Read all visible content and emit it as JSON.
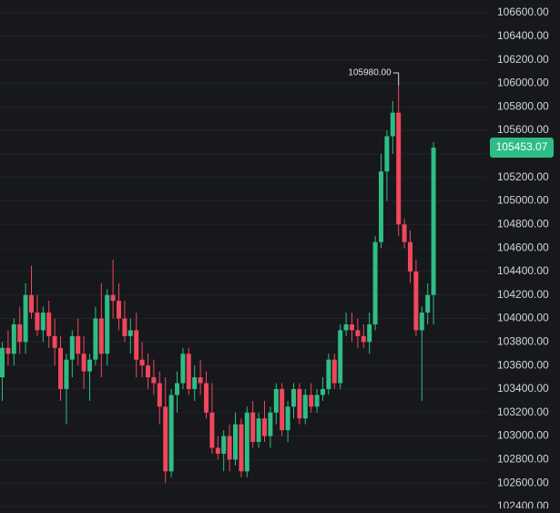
{
  "chart_data": {
    "type": "candlestick",
    "ylim": [
      102400,
      106600
    ],
    "yticks": [
      {
        "value": 106600,
        "label": "106600.00"
      },
      {
        "value": 106400,
        "label": "106400.00"
      },
      {
        "value": 106200,
        "label": "106200.00"
      },
      {
        "value": 106000,
        "label": "106000.00"
      },
      {
        "value": 105800,
        "label": "105800.00"
      },
      {
        "value": 105600,
        "label": "105600.00"
      },
      {
        "value": 105400,
        "label": "105400.00"
      },
      {
        "value": 105200,
        "label": "105200.00"
      },
      {
        "value": 105000,
        "label": "105000.00"
      },
      {
        "value": 104800,
        "label": "104800.00"
      },
      {
        "value": 104600,
        "label": "104600.00"
      },
      {
        "value": 104400,
        "label": "104400.00"
      },
      {
        "value": 104200,
        "label": "104200.00"
      },
      {
        "value": 104000,
        "label": "104000.00"
      },
      {
        "value": 103800,
        "label": "103800.00"
      },
      {
        "value": 103600,
        "label": "103600.00"
      },
      {
        "value": 103400,
        "label": "103400.00"
      },
      {
        "value": 103200,
        "label": "103200.00"
      },
      {
        "value": 103000,
        "label": "103000.00"
      },
      {
        "value": 102800,
        "label": "102800.00"
      },
      {
        "value": 102600,
        "label": "102600.00"
      },
      {
        "value": 102400,
        "label": "102400.00"
      }
    ],
    "grid": true,
    "up_color": "#2ebd85",
    "down_color": "#f0475c",
    "open": [
      103500,
      103750,
      103700,
      103950,
      103800,
      104200,
      104050,
      103900,
      104050,
      103850,
      103750,
      103400,
      103650,
      103850,
      103700,
      103550,
      103650,
      104000,
      103700,
      104200,
      104150,
      104000,
      103850,
      103900,
      103650,
      103600,
      103500,
      103450,
      103250,
      102700,
      103350,
      103450,
      103700,
      103400,
      103500,
      103450,
      103200,
      102900,
      102850,
      103000,
      102800,
      103100,
      102700,
      103200,
      102950,
      103150,
      103000,
      103200,
      103400,
      103050,
      103250,
      103400,
      103150,
      103350,
      103250,
      103350,
      103400,
      103650,
      103450,
      103900,
      103950,
      103900,
      103850,
      103800,
      103950,
      104650,
      105250,
      105550,
      105750,
      104800,
      104650,
      104400,
      103900,
      104050,
      104200
    ],
    "high": [
      103800,
      103900,
      104000,
      104100,
      104300,
      104450,
      104200,
      104100,
      104150,
      104000,
      103850,
      103700,
      103900,
      104000,
      103850,
      103700,
      104100,
      104300,
      104250,
      104500,
      104300,
      104150,
      104000,
      104050,
      103800,
      103700,
      103650,
      103550,
      103500,
      103400,
      103550,
      103750,
      103750,
      103600,
      103650,
      103550,
      103450,
      103000,
      103050,
      103100,
      103200,
      103150,
      103250,
      103300,
      103200,
      103300,
      103250,
      103450,
      103450,
      103300,
      103450,
      103450,
      103400,
      103450,
      103400,
      103500,
      103700,
      103700,
      103950,
      104050,
      104050,
      104000,
      103950,
      104050,
      104700,
      105400,
      105600,
      105850,
      105980,
      104850,
      104750,
      104500,
      104100,
      104300,
      105500
    ],
    "low": [
      103300,
      103600,
      103600,
      103700,
      103700,
      104000,
      103850,
      103800,
      103750,
      103600,
      103300,
      103100,
      103500,
      103600,
      103400,
      103300,
      103600,
      103500,
      103600,
      104000,
      103900,
      103800,
      103700,
      103500,
      103500,
      103400,
      103350,
      103100,
      102600,
      102650,
      103200,
      103400,
      103350,
      103300,
      103350,
      103150,
      102850,
      102800,
      102700,
      102700,
      102750,
      102650,
      102650,
      102900,
      102900,
      102950,
      102900,
      103100,
      103000,
      102950,
      103150,
      103100,
      103100,
      103200,
      103200,
      103300,
      103350,
      103400,
      103400,
      103850,
      103800,
      103750,
      103750,
      103700,
      103900,
      104600,
      105000,
      105400,
      104700,
      104600,
      104300,
      103850,
      103300,
      103950,
      103950
    ],
    "close": [
      103750,
      103700,
      103950,
      103800,
      104200,
      104050,
      103900,
      104050,
      103850,
      103750,
      103400,
      103650,
      103850,
      103700,
      103550,
      103650,
      104000,
      103700,
      104200,
      104150,
      104000,
      103850,
      103900,
      103650,
      103600,
      103500,
      103450,
      103250,
      102700,
      103350,
      103450,
      103700,
      103400,
      103500,
      103450,
      103200,
      102900,
      102850,
      103000,
      102800,
      103100,
      102700,
      103200,
      102950,
      103150,
      103000,
      103200,
      103400,
      103050,
      103250,
      103400,
      103150,
      103350,
      103250,
      103350,
      103400,
      103650,
      103450,
      103900,
      103950,
      103900,
      103850,
      103800,
      103950,
      104650,
      105250,
      105550,
      105750,
      104800,
      104650,
      104400,
      103900,
      104050,
      104200,
      105453.07
    ],
    "annotations": [
      {
        "value": 105980,
        "label": "105980.00"
      }
    ],
    "last_price": {
      "value": 105453.07,
      "label": "105453.07"
    }
  }
}
